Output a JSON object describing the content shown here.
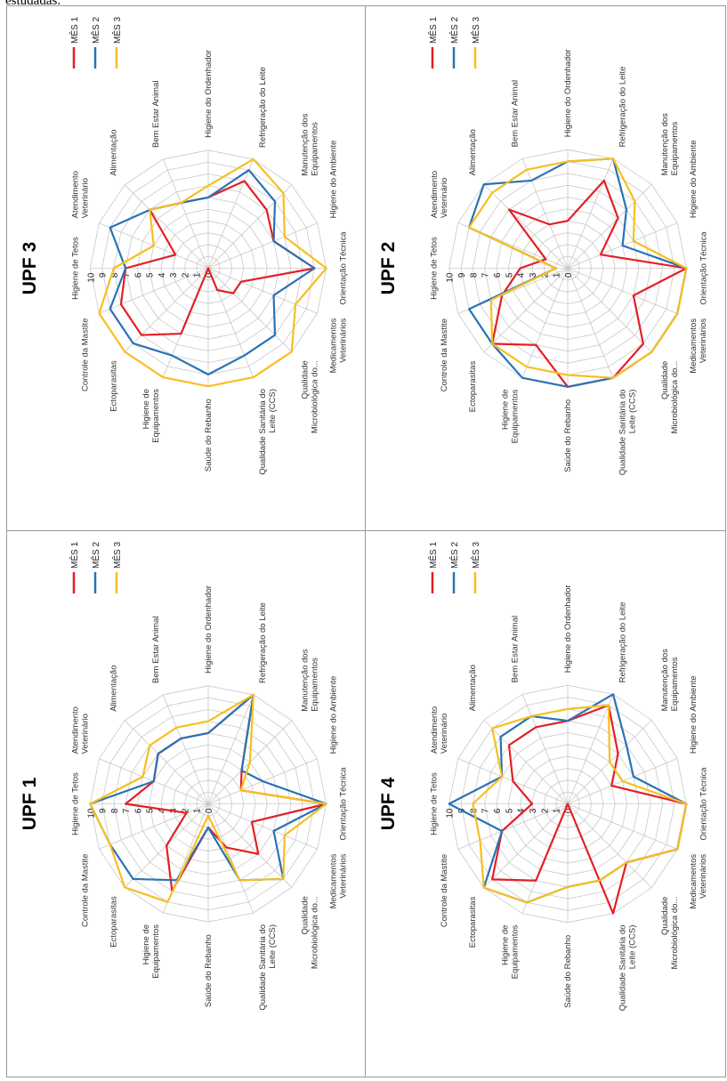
{
  "caption": "estudadas.",
  "axes": [
    "Higiene de Tetos",
    "Atendimento Veterinário",
    "Alimentação",
    "Bem Estar Animal",
    "Higiene do Ordenhador",
    "Refrigeração do Leite",
    "Manutenção dos Equipamentos",
    "Higiene do Ambiente",
    "Orientação Técnica",
    "Medicamentos Veterinários",
    "Qualidade Microbiológica do...",
    "Qualidade Sanitária do Leite (CCS)",
    "Saúde do Rebanho",
    "Higiene de Equipamentos",
    "Ectoparasitas",
    "Controle da Mastite"
  ],
  "ticks": [
    "0",
    "1",
    "2",
    "3",
    "4",
    "5",
    "6",
    "7",
    "8",
    "9",
    "10"
  ],
  "colors": {
    "red": "#e41f26",
    "blue": "#2a72b5",
    "yellow": "#f7bf20"
  },
  "chart_data": [
    {
      "type": "radar",
      "title": "UPF 1",
      "rmax": 10,
      "series": [
        {
          "name": "MÊS 1",
          "values": [
            7,
            5,
            6,
            6,
            6,
            10,
            4,
            3,
            10,
            4,
            6,
            4,
            2,
            8,
            5,
            2
          ]
        },
        {
          "name": "MÊS 2",
          "values": [
            10,
            5,
            6,
            6,
            6,
            10,
            4,
            5,
            10,
            6,
            9,
            7,
            2,
            7,
            9,
            9
          ]
        },
        {
          "name": "MÊS 3",
          "values": [
            10,
            6,
            7,
            7,
            7,
            10,
            5,
            3,
            10,
            7,
            9,
            7,
            1,
            9,
            10,
            9
          ]
        }
      ]
    },
    {
      "type": "radar",
      "title": "UPF 2",
      "rmax": 10,
      "series": [
        {
          "name": "MÊS 1",
          "values": [
            4,
            2,
            7,
            4,
            4,
            8,
            6,
            3,
            10,
            6,
            9,
            10,
            10,
            7,
            9,
            6
          ]
        },
        {
          "name": "MÊS 2",
          "values": [
            1,
            9,
            10,
            8,
            9,
            10,
            7,
            5,
            10,
            10,
            10,
            10,
            10,
            10,
            9,
            9
          ]
        },
        {
          "name": "MÊS 3",
          "values": [
            1,
            9,
            9,
            9,
            9,
            10,
            8,
            6,
            10,
            10,
            10,
            10,
            9,
            9,
            9,
            7
          ]
        }
      ]
    },
    {
      "type": "radar",
      "title": "UPF 3",
      "rmax": 10,
      "series": [
        {
          "name": "MÊS 1",
          "values": [
            7,
            3,
            7,
            6,
            6,
            8,
            7,
            6,
            9,
            3,
            3,
            2,
            0,
            6,
            8,
            8
          ]
        },
        {
          "name": "MÊS 2",
          "values": [
            7,
            9,
            7,
            6,
            6,
            9,
            8,
            6,
            9,
            6,
            8,
            8,
            9,
            8,
            9,
            9
          ]
        },
        {
          "name": "MÊS 3",
          "values": [
            8,
            5,
            7,
            6,
            7,
            10,
            9,
            7,
            10,
            8,
            10,
            10,
            10,
            10,
            10,
            10
          ]
        }
      ]
    },
    {
      "type": "radar",
      "title": "UPF 4",
      "rmax": 10,
      "series": [
        {
          "name": "MÊS 1",
          "values": [
            3,
            5,
            7,
            7,
            7,
            9,
            6,
            4,
            10,
            10,
            7,
            10,
            0,
            7,
            9,
            6
          ]
        },
        {
          "name": "MÊS 2",
          "values": [
            10,
            6,
            8,
            8,
            7,
            10,
            7,
            6,
            10,
            10,
            7,
            7,
            7,
            9,
            10,
            6
          ]
        },
        {
          "name": "MÊS 3",
          "values": [
            8,
            6,
            9,
            8,
            8,
            9,
            5,
            5,
            10,
            10,
            7,
            7,
            7,
            9,
            10,
            8
          ]
        }
      ]
    }
  ]
}
